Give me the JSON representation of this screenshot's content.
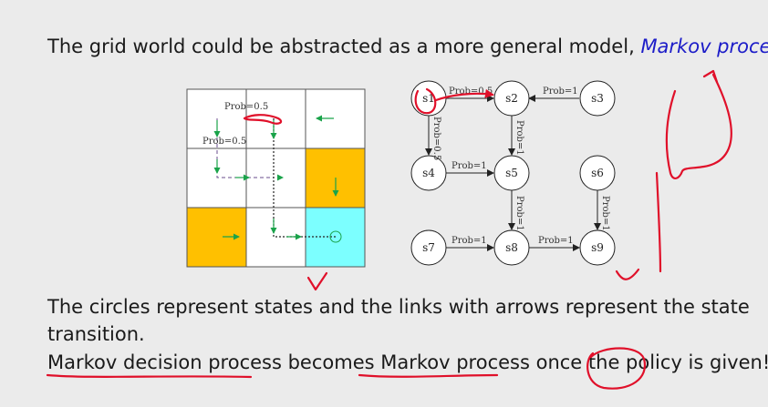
{
  "slide": {
    "intro_text": "The grid world could be abstracted as a more general model,",
    "intro_link": "Markov process.",
    "circles_text": "The circles represent states and the links with arrows represent the state",
    "circles_text_cont": "transition.",
    "mdp_text": "Markov decision process",
    "becomes_text": " becomes ",
    "mp_text": "Markov process",
    "once_text": " once the ",
    "policy_text": "policy",
    "given_text": " is given!"
  },
  "grid_labels": {
    "prob_top": "Prob=0.5",
    "prob_left": "Prob=0.5"
  },
  "graph": {
    "nodes": [
      "s1",
      "s2",
      "s3",
      "s4",
      "s5",
      "s6",
      "s7",
      "s8",
      "s9"
    ],
    "edge_labels": {
      "s1_s2": "Prob=0.5",
      "s3_s2": "Prob=1",
      "s1_s4": "Prob=0.5",
      "s2_s5": "Prob=1",
      "s4_s5": "Prob=1",
      "s5_s8": "Prob=1",
      "s6_s9": "Prob=1",
      "s7_s8": "Prob=1",
      "s8_s9": "Prob=1"
    }
  },
  "colors": {
    "yellow_cell": "#ffc000",
    "cyan_cell": "#7cffff",
    "text_blue": "#1c1cc8",
    "ink_red": "#e0102a",
    "arrow_green": "#1aa34a"
  }
}
